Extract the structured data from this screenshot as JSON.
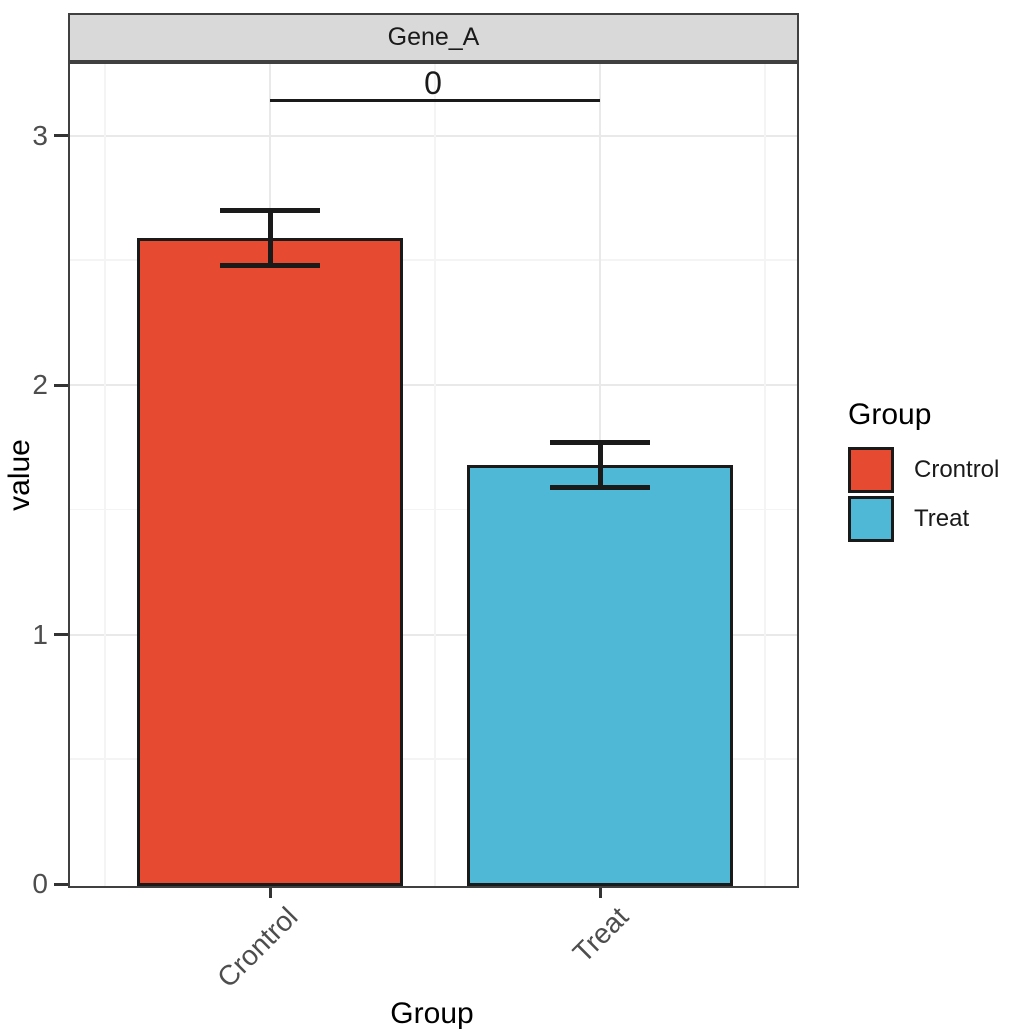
{
  "chart_data": {
    "type": "bar",
    "title": "",
    "facet": "Gene_A",
    "xlabel": "Group",
    "ylabel": "value",
    "categories": [
      "Crontrol",
      "Treat"
    ],
    "values": [
      2.59,
      1.68
    ],
    "error_low": [
      2.48,
      1.59
    ],
    "error_high": [
      2.7,
      1.77
    ],
    "bar_colors": [
      "#E64B32",
      "#4FB8D6"
    ],
    "yticks": [
      0,
      1,
      2,
      3
    ],
    "ylim": [
      0,
      3.3
    ],
    "x_tick_angle": 45,
    "grid": "major and minor, very light gray, both axes",
    "legend": {
      "title": "Group",
      "position": "right",
      "entries": [
        {
          "label": "Crontrol",
          "color": "#E64B32"
        },
        {
          "label": "Treat",
          "color": "#4FB8D6"
        }
      ]
    },
    "significance": {
      "label": "0",
      "from": "Crontrol",
      "to": "Treat",
      "y": 3.14
    }
  },
  "colors": {
    "background": "#ffffff",
    "bar_control": "#E64B32",
    "bar_treat": "#4FB8D6",
    "outline": "#1a1a1a",
    "strip_bg": "#d9d9d9",
    "panel_border": "#404040",
    "grid_major": "#e9e9e9",
    "grid_minor": "#f4f4f4",
    "tick_label": "#4d4d4d"
  }
}
